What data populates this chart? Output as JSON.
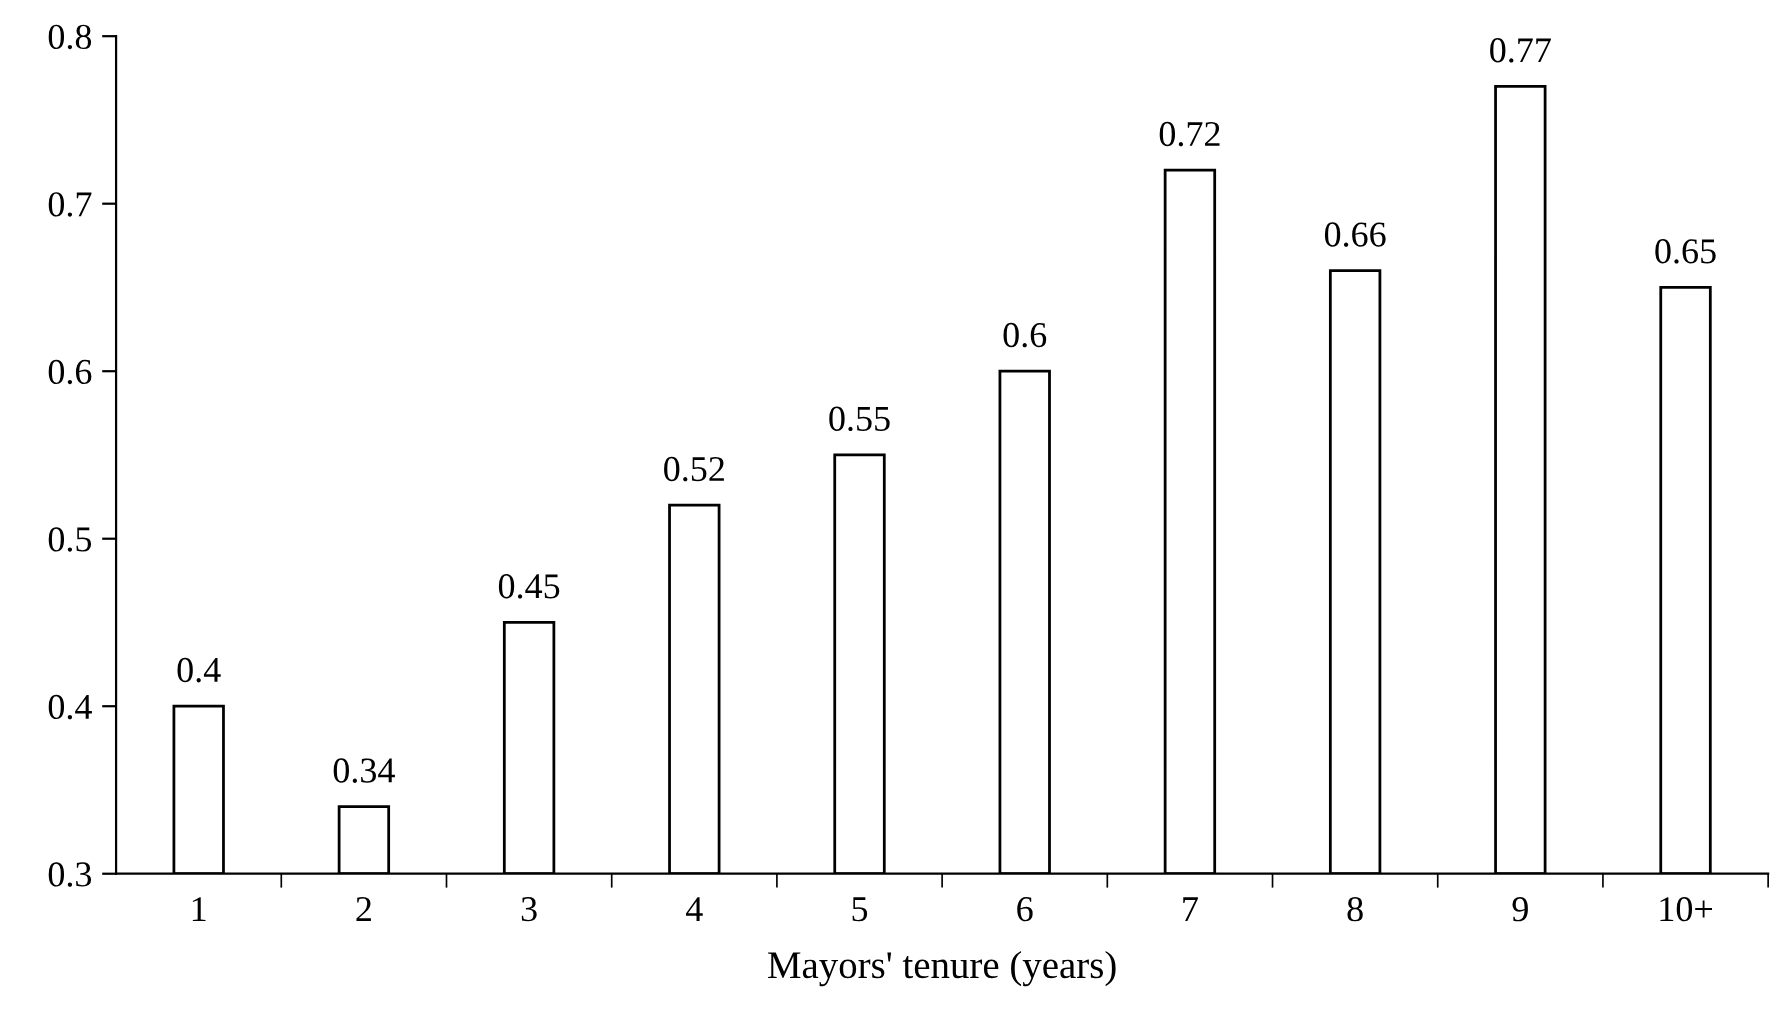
{
  "chart_data": {
    "type": "bar",
    "xlabel": "Mayors' tenure (years)",
    "categories": [
      "1",
      "2",
      "3",
      "4",
      "5",
      "6",
      "7",
      "8",
      "9",
      "10+"
    ],
    "values": [
      0.4,
      0.34,
      0.45,
      0.52,
      0.55,
      0.6,
      0.72,
      0.66,
      0.77,
      0.65
    ],
    "color": "#ffffff",
    "ylim": [
      0.3,
      0.8
    ],
    "yticks": [
      0.3,
      0.4,
      0.5,
      0.6,
      0.7,
      0.8
    ],
    "data_labels": true,
    "grid": false,
    "legend": false
  }
}
